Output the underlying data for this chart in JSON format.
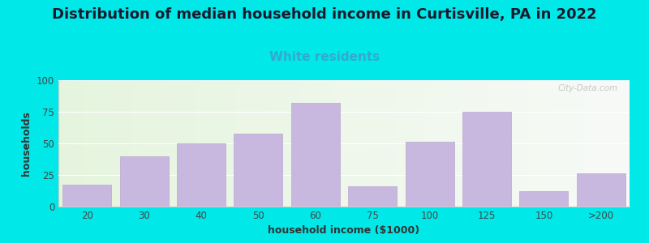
{
  "categories": [
    "20",
    "30",
    "40",
    "50",
    "60",
    "75",
    "100",
    "125",
    "150",
    ">200"
  ],
  "values": [
    17,
    40,
    50,
    58,
    82,
    16,
    51,
    75,
    12,
    26
  ],
  "bar_color": "#c8b8e0",
  "bar_edgecolor": "#b8a8d0",
  "title": "Distribution of median household income in Curtisville, PA in 2022",
  "subtitle": "White residents",
  "subtitle_color": "#33aacc",
  "xlabel": "household income ($1000)",
  "ylabel": "households",
  "ylim": [
    0,
    100
  ],
  "yticks": [
    0,
    25,
    50,
    75,
    100
  ],
  "background_color": "#00e8e8",
  "title_fontsize": 13,
  "subtitle_fontsize": 11,
  "label_fontsize": 9,
  "watermark": "City-Data.com"
}
